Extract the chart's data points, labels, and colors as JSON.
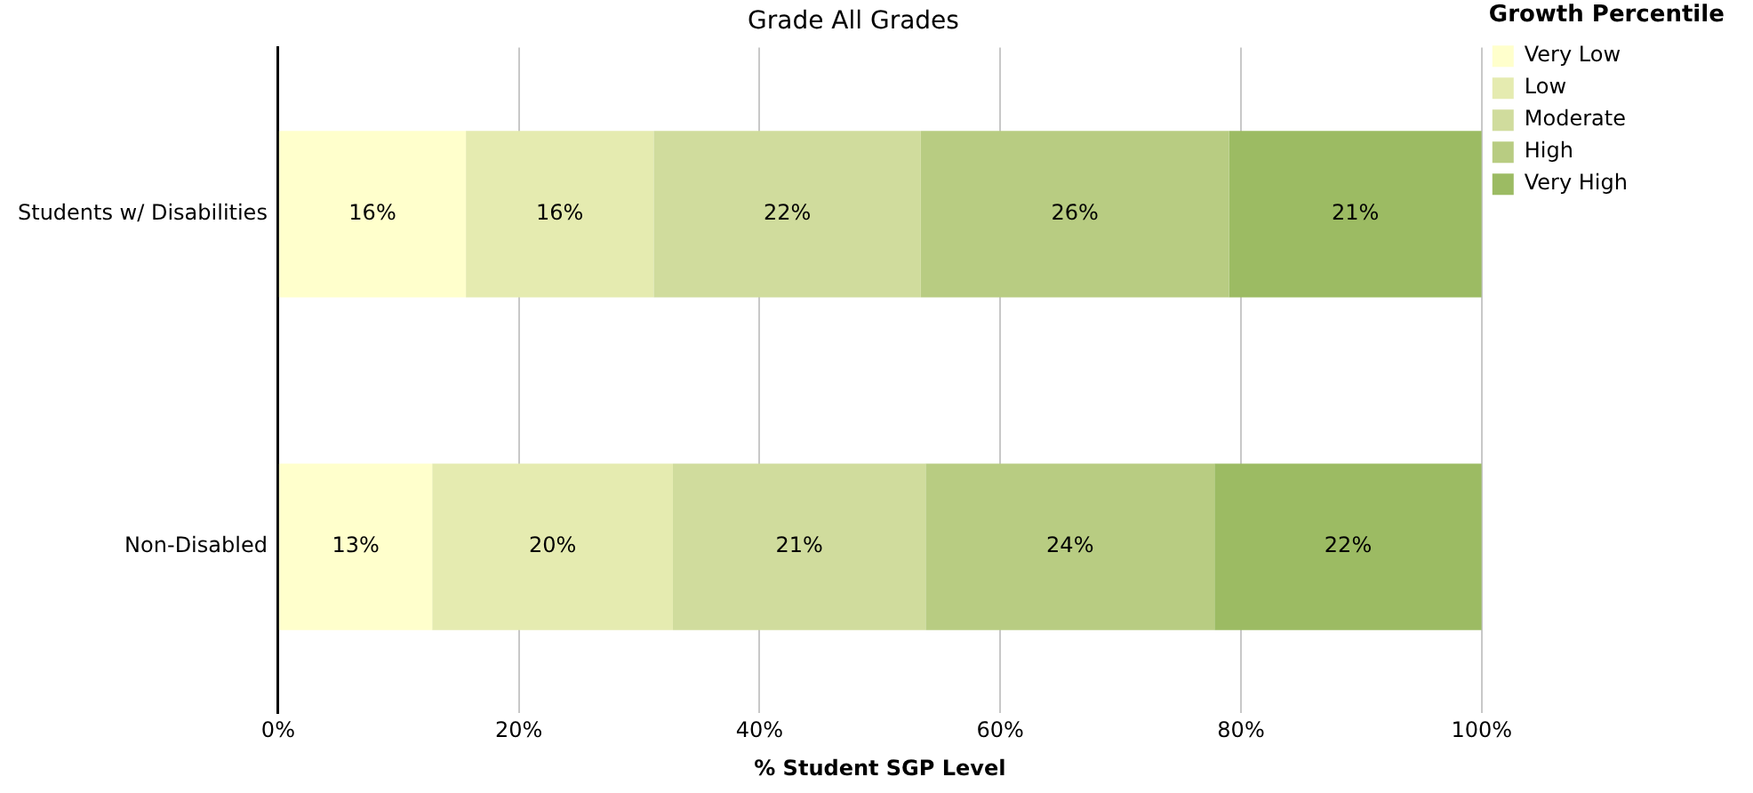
{
  "chart_data": {
    "type": "bar",
    "orientation": "horizontal",
    "stacked": true,
    "title": "Grade All Grades",
    "xlabel": "% Student SGP Level",
    "legend_title": "Growth Percentile",
    "categories": [
      "Students w/ Disabilities",
      "Non-Disabled"
    ],
    "series": [
      {
        "name": "Very Low",
        "color": "#ffffcc",
        "values": [
          15.6,
          12.8
        ],
        "value_labels": [
          "16%",
          "13%"
        ]
      },
      {
        "name": "Low",
        "color": "#e5ebb0",
        "values": [
          15.6,
          20.0
        ],
        "value_labels": [
          "16%",
          "20%"
        ]
      },
      {
        "name": "Moderate",
        "color": "#d0dc9d",
        "values": [
          22.2,
          21.0
        ],
        "value_labels": [
          "22%",
          "21%"
        ]
      },
      {
        "name": "High",
        "color": "#b8cc82",
        "values": [
          25.6,
          24.0
        ],
        "value_labels": [
          "26%",
          "24%"
        ]
      },
      {
        "name": "Very High",
        "color": "#9cbb63",
        "values": [
          21.0,
          22.2
        ],
        "value_labels": [
          "21%",
          "22%"
        ]
      }
    ],
    "xlim": [
      0,
      100
    ],
    "xticks": [
      {
        "value": 0,
        "label": "0%"
      },
      {
        "value": 20,
        "label": "20%"
      },
      {
        "value": 40,
        "label": "40%"
      },
      {
        "value": 60,
        "label": "60%"
      },
      {
        "value": 80,
        "label": "80%"
      },
      {
        "value": 100,
        "label": "100%"
      }
    ],
    "grid": "x",
    "legend": "top right"
  }
}
